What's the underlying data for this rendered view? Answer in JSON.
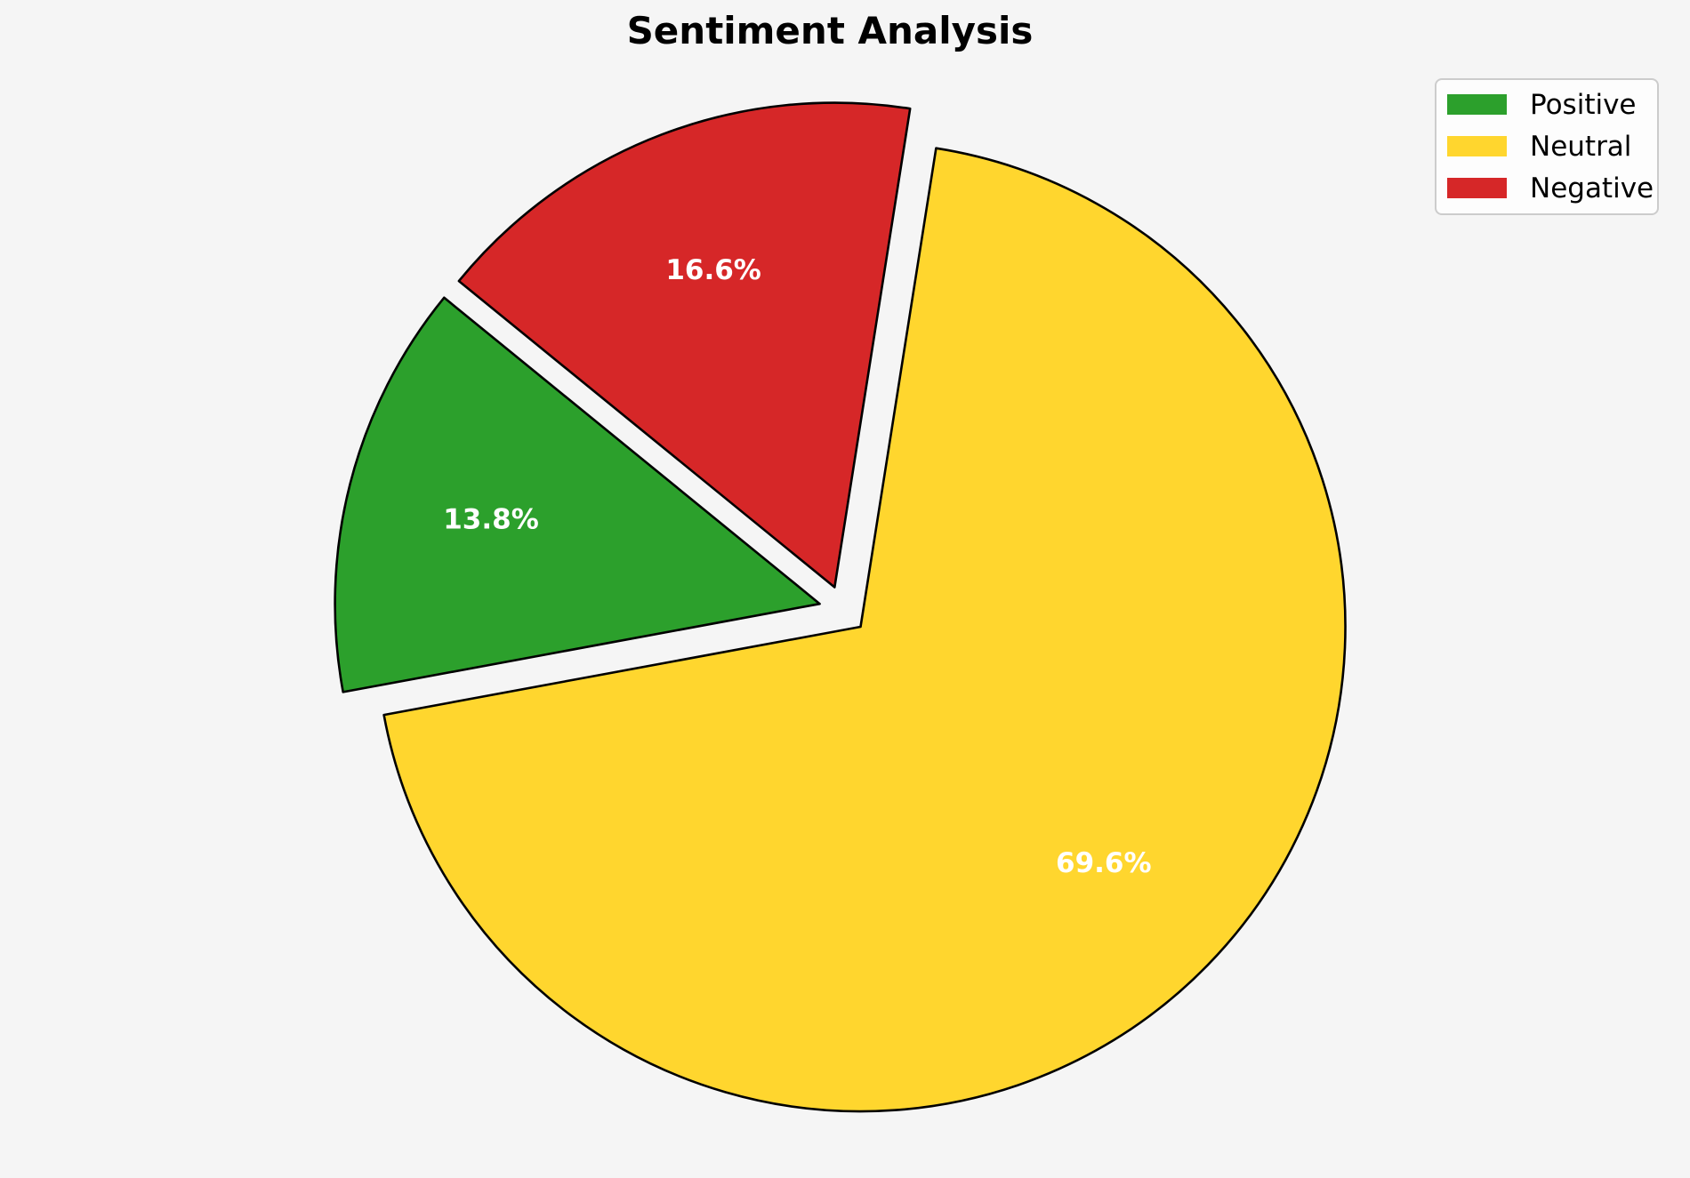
{
  "page": {
    "background_color": "#f5f5f5"
  },
  "chart_data": {
    "type": "pie",
    "title": "Sentiment Analysis",
    "categories": [
      "Positive",
      "Neutral",
      "Negative"
    ],
    "values": [
      13.8,
      69.6,
      16.6
    ],
    "pct_labels": [
      "13.8%",
      "69.6%",
      "16.6%"
    ],
    "colors": [
      "#2ca02c",
      "#ffd62e",
      "#d62728"
    ],
    "edge_color": "#000000",
    "pct_label_color": "#ffffff",
    "start_angle": 140.8,
    "direction": "counterclockwise",
    "explode": 0.05,
    "pctdistance": 0.7,
    "legend": {
      "position": "upper right",
      "entries": [
        "Positive",
        "Neutral",
        "Negative"
      ]
    }
  }
}
